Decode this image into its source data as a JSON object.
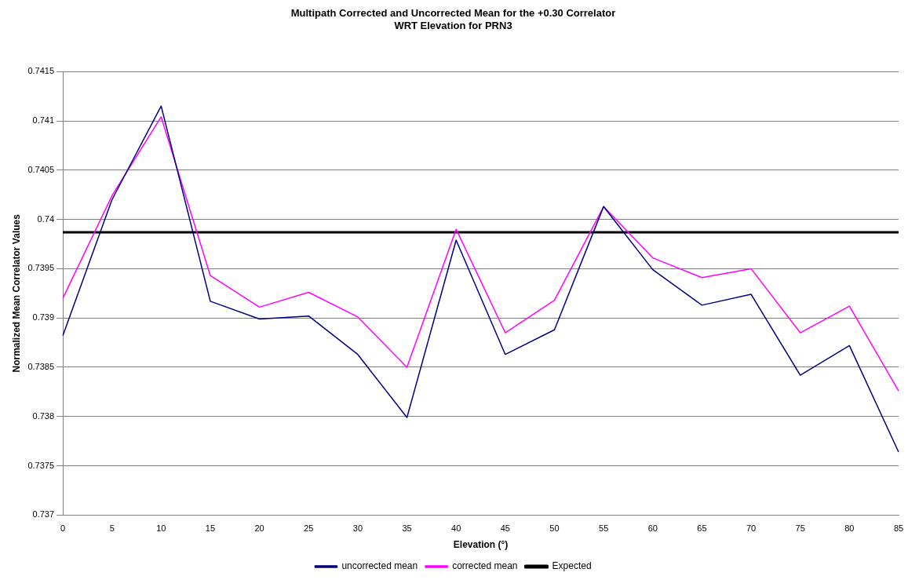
{
  "chart_data": {
    "type": "line",
    "title": "Multipath Corrected and Uncorrected Mean for the +0.30 Correlator\nWRT Elevation for PRN3",
    "xlabel": "Elevation (°)",
    "ylabel": "Normalized Mean Correlator Values",
    "categories": [
      "0",
      "5",
      "10",
      "15",
      "20",
      "25",
      "30",
      "35",
      "40",
      "45",
      "50",
      "55",
      "60",
      "65",
      "70",
      "75",
      "80",
      "85"
    ],
    "series": [
      {
        "name": "uncorrected mean",
        "color": "#000080",
        "values": [
          0.73882,
          0.7402,
          0.74115,
          0.73917,
          0.73899,
          0.73902,
          0.73863,
          0.73799,
          0.73979,
          0.73863,
          0.73888,
          0.74013,
          0.73949,
          0.73913,
          0.73924,
          0.73842,
          0.73872,
          0.73764
        ]
      },
      {
        "name": "corrected mean",
        "color": "#ff00ff",
        "values": [
          0.7392,
          0.74024,
          0.74104,
          0.73943,
          0.73911,
          0.73926,
          0.73901,
          0.7385,
          0.7399,
          0.73885,
          0.73918,
          0.74013,
          0.73961,
          0.73941,
          0.7395,
          0.73885,
          0.73912,
          0.73826
        ]
      },
      {
        "name": "Expected",
        "color": "#000000",
        "values": [
          0.73987,
          0.73987,
          0.73987,
          0.73987,
          0.73987,
          0.73987,
          0.73987,
          0.73987,
          0.73987,
          0.73987,
          0.73987,
          0.73987,
          0.73987,
          0.73987,
          0.73987,
          0.73987,
          0.73987,
          0.73987
        ]
      }
    ],
    "ylim": [
      0.737,
      0.7415
    ],
    "yticks": [
      0.737,
      0.7375,
      0.738,
      0.7385,
      0.739,
      0.7395,
      0.74,
      0.7405,
      0.741,
      0.7415
    ],
    "grid": "y",
    "legend": "bottom",
    "marker": "none",
    "line_style": "solid"
  }
}
